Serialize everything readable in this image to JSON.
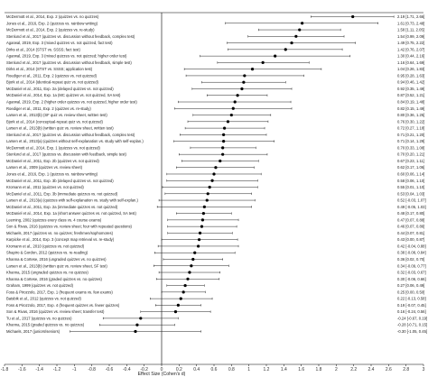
{
  "chart_data": {
    "type": "scatter",
    "subtype": "forest-plot",
    "xlabel": "Effect Size (Cohen's d)",
    "xlim": [
      -1.8,
      3.0
    ],
    "xticks": [
      "-1.8",
      "-1.6",
      "-1.4",
      "-1.2",
      "-1",
      "-0.8",
      "-0.6",
      "-0.4",
      "-0.2",
      "0",
      "0.2",
      "0.4",
      "0.6",
      "0.8",
      "1",
      "1.2",
      "1.4",
      "1.6",
      "1.8",
      "2",
      "2.2",
      "2.4",
      "2.6",
      "2.8",
      "3"
    ],
    "reference_line": 0,
    "grid": false,
    "studies": [
      {
        "label": "McDermott et al., 2014, Exp. 2 (quizzes vs. no quizzes)",
        "d": 2.19,
        "lo": 1.71,
        "hi": 2.66,
        "text": "2.19 [1.71, 2.66]"
      },
      {
        "label": "Jones et al., 2016, Exp. 2 (quizzes vs. rainbow writing)",
        "d": 1.61,
        "lo": 0.73,
        "hi": 2.48,
        "text": "1.61 [0.73, 2.48]"
      },
      {
        "label": "McDermott et al., 2014, Exp. 2 (quizzes vs. re-study)",
        "d": 1.58,
        "lo": 1.11,
        "hi": 2.05,
        "text": "1.58 [1.11, 2.05]"
      },
      {
        "label": "Stenlund et al., 2017 (quizzes vs. discussion without feedback, complex test)",
        "d": 1.54,
        "lo": 0.99,
        "hi": 2.09,
        "text": "1.54 [0.99, 2.09]"
      },
      {
        "label": "Agarwal, 2019, Exp. 3 (mixed quizzes vs. not quizzed, fact test)",
        "d": 1.49,
        "lo": 0.75,
        "hi": 2.22,
        "text": "1.49 [0.75, 2.22]"
      },
      {
        "label": "Dirks et al., 2014 (STST vs. SSSS; fact test)",
        "d": 1.42,
        "lo": 0.76,
        "hi": 2.07,
        "text": "1.42 [0.76, 2.07]"
      },
      {
        "label": "Agarwal, 2019, Exp. 3 (mixed quizzes vs. not quizzed; higher order test)",
        "d": 1.3,
        "lo": 0.44,
        "hi": 2.16,
        "text": "1.30 [0.44, 2.16]"
      },
      {
        "label": "Stenlund et al., 2017 (quizzes vs. discussion without feedback, simple test)",
        "d": 1.16,
        "lo": 0.64,
        "hi": 1.69,
        "text": "1.16 [0.64, 1.69]"
      },
      {
        "label": "Dirks et al., 2014 (STST vs. SSSS; application test)",
        "d": 1.04,
        "lo": 0.26,
        "hi": 1.83,
        "text": "1.04 [0.26, 1.83]"
      },
      {
        "label": "Roediger et al., 2011, Exp. 2 (quizzes vs. not quizzed)",
        "d": 0.95,
        "lo": 0.28,
        "hi": 1.63,
        "text": "0.95 [0.28, 1.63]"
      },
      {
        "label": "Bjork et al., 2014 (identical-repeat quiz vs. not quizzed)",
        "d": 0.94,
        "lo": 0.46,
        "hi": 1.42,
        "text": "0.94 [0.46, 1.42]"
      },
      {
        "label": "McDaniel et al., 2011, Exp. 2a (delayed quizzes vs. not quizzed)",
        "d": 0.92,
        "lo": 0.35,
        "hi": 1.49,
        "text": "0.92 [0.35, 1.49]"
      },
      {
        "label": "McDaniel et al., 2014, Exp. 1a (MC quizzes vs. not quizzed, SA test)",
        "d": 0.87,
        "lo": 0.52,
        "hi": 1.21,
        "text": "0.87 [0.52, 1.21]"
      },
      {
        "label": "Agarwal, 2019, Exp. 2 (higher order quizzes vs. not quizzed, higher order test)",
        "d": 0.84,
        "lo": 0.19,
        "hi": 1.48,
        "text": "0.84 [0.19, 1.48]"
      },
      {
        "label": "Roediger et al., 2011, Exp. 2 (quizzes vs. re-study)",
        "d": 0.82,
        "lo": 0.15,
        "hi": 1.49,
        "text": "0.82 [0.15, 1.49]"
      },
      {
        "label": "Larsen et al., 2013(b) (SF quiz vs. review sheet, written test)",
        "d": 0.8,
        "lo": 0.36,
        "hi": 1.25,
        "text": "0.80 [0.36, 1.25]"
      },
      {
        "label": "Bjork et al., 2014 (conceptual-repeat quiz vs. not quizzed)",
        "d": 0.76,
        "lo": 0.3,
        "hi": 1.22,
        "text": "0.76 [0.30, 1.22]"
      },
      {
        "label": "Larsen et al., 2013(b) (written quiz vs. review sheet, written test)",
        "d": 0.72,
        "lo": 0.27,
        "hi": 1.18,
        "text": "0.72 [0.27, 1.18]"
      },
      {
        "label": "Stenlund et al., 2017 (quizzes vs. discussion without feedback, complex test)",
        "d": 0.71,
        "lo": 0.21,
        "hi": 1.2,
        "text": "0.71 [0.21, 1.20]"
      },
      {
        "label": "Larsen et al., 2013(a) (quizzes without self-explanation vs. study with self-explan.)",
        "d": 0.71,
        "lo": 0.14,
        "hi": 1.29,
        "text": "0.71 [0.14, 1.29]"
      },
      {
        "label": "McDermott et al., 2014, Exp. 1 (quizzes vs. not quizzed)",
        "d": 0.7,
        "lo": 0.33,
        "hi": 1.08,
        "text": "0.70 [0.33, 1.08]"
      },
      {
        "label": "Stenlund et al., 2017 (quizzes vs. discussion with feedback, simple test)",
        "d": 0.7,
        "lo": 0.2,
        "hi": 1.21,
        "text": "0.70 [0.20, 1.21]"
      },
      {
        "label": "McDaniel et al., 2011, Exp. 2b (quizzes vs. not quizzed)",
        "d": 0.67,
        "lo": 0.23,
        "hi": 1.11,
        "text": "0.67 [0.23, 1.11]"
      },
      {
        "label": "Larsen et al., 2009 (quizzes vs. review sheet)",
        "d": 0.62,
        "lo": 0.17,
        "hi": 1.06,
        "text": "0.62 [0.17, 1.06]"
      },
      {
        "label": "Jones et al., 2016, Exp. 1 (quizzes vs. rainbow writing)",
        "d": 0.6,
        "lo": 0.06,
        "hi": 1.14,
        "text": "0.60 [0.06, 1.14]"
      },
      {
        "label": "McDaniel et al., 2011, Exp. 3b (delayed quizzes vs. not quizzed)",
        "d": 0.58,
        "lo": 0.06,
        "hi": 1.1,
        "text": "0.58 [0.06, 1.10]"
      },
      {
        "label": "Kromann et al., 2011 (quizzes vs. not quizzed)",
        "d": 0.55,
        "lo": 0.01,
        "hi": 1.1,
        "text": "0.55 [0.01, 1.10]"
      },
      {
        "label": "McDaniel et al., 2011, Exp. 3b (immediate quizzes vs. not quizzed)",
        "d": 0.53,
        "lo": 0.04,
        "hi": 1.03,
        "text": "0.53 [0.04, 1.03]"
      },
      {
        "label": "Larsen et al., 2013(a) (quizzes with self-explanation vs. study with self-explan.)",
        "d": 0.52,
        "lo": -0.03,
        "hi": 1.07,
        "text": "0.52 [-0.03, 1.07]"
      },
      {
        "label": "McDaniel et al., 2011, Exp. 2a (immediate quizzes vs. not quizzed)",
        "d": 0.49,
        "lo": -0.05,
        "hi": 1.03,
        "text": "0.49 [-0.05, 1.03]"
      },
      {
        "label": "McDaniel et al., 2014, Exp. 1a (short answer quizzes vs. not quizzed, SA test)",
        "d": 0.48,
        "lo": 0.17,
        "hi": 0.8,
        "text": "0.48 [0.17, 0.80]"
      },
      {
        "label": "Leeming, 2002 (quizzes every class vs. 4 course exams)",
        "d": 0.47,
        "lo": 0.07,
        "hi": 0.88,
        "text": "0.47 [0.07, 0.88]"
      },
      {
        "label": "Son & Rivas, 2016 (quizzes vs. review sheet; four with repeated questions)",
        "d": 0.46,
        "lo": 0.07,
        "hi": 0.86,
        "text": "0.46 [0.07, 0.86]"
      },
      {
        "label": "Michaels, 2017 (quizzes vs. no quizzes; freshmen/sophomores)",
        "d": 0.44,
        "lo": 0.07,
        "hi": 0.81,
        "text": "0.44 [0.07, 0.81]"
      },
      {
        "label": "Karpicke et al., 2014, Exp. 3 (concept map retrieval vs. re-study)",
        "d": 0.43,
        "lo": 0.0,
        "hi": 0.87,
        "text": "0.43 [0.00, 0.87]"
      },
      {
        "label": "Kromann et al., 2010 (quizzes vs. not quizzed)",
        "d": 0.42,
        "lo": -0.04,
        "hi": 0.88,
        "text": "0.42 [-0.04, 0.88]"
      },
      {
        "label": "Shapiro & Gordon, 2012 (quizzes vs. re-reading)",
        "d": 0.38,
        "lo": -0.08,
        "hi": 0.84,
        "text": "0.38 [-0.08, 0.84]"
      },
      {
        "label": "Khanna & Cortese, 2016 (ungraded quizzes vs. no quizzes)",
        "d": 0.36,
        "lo": 0.02,
        "hi": 0.7,
        "text": "0.36 [0.02, 0.70]"
      },
      {
        "label": "Larsen et al., 2013(b) (written quiz vs. review sheet, SF test)",
        "d": 0.34,
        "lo": -0.09,
        "hi": 0.77,
        "text": "0.34 [-0.09, 0.77]"
      },
      {
        "label": "Khanna, 2015 (ungraded quizzes vs. no quizzes)",
        "d": 0.32,
        "lo": -0.03,
        "hi": 0.67,
        "text": "0.32 [-0.03, 0.67]"
      },
      {
        "label": "Khanna & Cortese, 2016 (graded quizzes vs. no quizzes)",
        "d": 0.3,
        "lo": -0.06,
        "hi": 0.66,
        "text": "0.30 [-0.06, 0.66]"
      },
      {
        "label": "Graham, 1999 (quizzes vs. not quizzed)",
        "d": 0.27,
        "lo": 0.06,
        "hi": 0.49,
        "text": "0.27 [0.06, 0.49]"
      },
      {
        "label": "Foss & Pirozzolo, 2017, Exp. 1 (frequent exams vs. few exams)",
        "d": 0.25,
        "lo": 0.0,
        "hi": 0.5,
        "text": "0.25 [0.00, 0.50]"
      },
      {
        "label": "Batsbik et al., 2012 (quizzes vs. not quizzed)",
        "d": 0.22,
        "lo": -0.13,
        "hi": 0.58,
        "text": "0.22 [-0.13, 0.58]"
      },
      {
        "label": "Foss & Pirozzolo, 2017, Exp. 4 (frequent quizzes vs. fewer quizzes)",
        "d": 0.19,
        "lo": -0.07,
        "hi": 0.45,
        "text": "0.19 [-0.07, 0.45]"
      },
      {
        "label": "Son & Rivas, 2016 (quizzes vs. review sheet; transfer test)",
        "d": 0.16,
        "lo": -0.24,
        "hi": 0.56,
        "text": "0.16 [-0.24, 0.56]"
      },
      {
        "label": "Tu et al., 2017 (quizzes vs. no quizzes)",
        "d": -0.24,
        "lo": -0.67,
        "hi": 0.19,
        "text": "-0.24 [-0.67, 0.19]"
      },
      {
        "label": "Khanna, 2015 (graded quizzes vs. no quizzes)",
        "d": -0.28,
        "lo": -0.71,
        "hi": 0.15,
        "text": "-0.28 [-0.71, 0.15]"
      },
      {
        "label": "Michaels, 2017 (juniors/seniors)",
        "d": -0.3,
        "lo": -1.05,
        "hi": 0.45,
        "text": "-0.30 [-1.05, 0.45]"
      }
    ]
  }
}
